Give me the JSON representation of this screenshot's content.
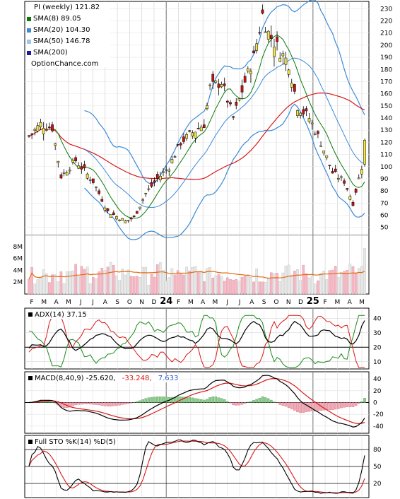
{
  "header": {
    "title": "PI (weekly) 121.82",
    "site": "OptionChance.com"
  },
  "legend": [
    {
      "label": "SMA(8) 89.05",
      "color": "#0a7a0a"
    },
    {
      "label": "SMA(20) 104.30",
      "color": "#3a8ad8"
    },
    {
      "label": "SMA(50) 146.78",
      "color": "#9cc4ef"
    },
    {
      "label": "SMA(200)",
      "color": "#1a1aa8"
    }
  ],
  "colors": {
    "up": "#f4e64a",
    "down": "#cc1111",
    "sma8": "#0a7a0a",
    "sma20": "#3a8ad8",
    "sma50": "#d81818",
    "sma200": "#1a1aa8",
    "bb": "#3a8ad8",
    "vol_up": "#e8e8e8",
    "vol_down": "#f4b8c4",
    "vol_avg": "#e26a10",
    "adx": "#000000",
    "dip": "#1a8a1a",
    "dim": "#d81818",
    "macd": "#000000",
    "signal": "#d81818",
    "hist_up": "#8ccc8c",
    "hist_down": "#f0a8b4",
    "stok": "#000000",
    "stod": "#d81818"
  },
  "x_labels": [
    "F",
    "M",
    "A",
    "M",
    "J",
    "J",
    "A",
    "S",
    "O",
    "N",
    "D",
    "24",
    "F",
    "M",
    "A",
    "M",
    "J",
    "J",
    "A",
    "S",
    "O",
    "N",
    "D",
    "25",
    "F",
    "M",
    "A",
    "M"
  ],
  "panels": {
    "volume": {
      "ticks": [
        "8M",
        "6M",
        "4M",
        "2M"
      ]
    },
    "adx": {
      "label": "ADX(14) 37.15",
      "ticks": [
        "40",
        "30",
        "20",
        "10"
      ]
    },
    "macd": {
      "label": "MACD(8,40,9) -25.620,",
      "val1": "-33.248,",
      "val2": "7.633",
      "ticks": [
        "40",
        "20",
        "0",
        "-20",
        "-40"
      ]
    },
    "sto": {
      "label": "Full STO %K(14) %D(5)",
      "ticks": [
        "80",
        "50",
        "20"
      ]
    }
  },
  "chart_data": {
    "type": "line",
    "title": "PI (weekly) 121.82",
    "price_axis_ticks": [
      230,
      220,
      210,
      200,
      190,
      180,
      170,
      160,
      150,
      140,
      130,
      120,
      110,
      100,
      90,
      80,
      70,
      60,
      50
    ],
    "weekly_close_anchors": [
      {
        "week": 0,
        "close": 125
      },
      {
        "week": 4,
        "close": 135
      },
      {
        "week": 8,
        "close": 132
      },
      {
        "week": 11,
        "close": 92
      },
      {
        "week": 16,
        "close": 105
      },
      {
        "week": 22,
        "close": 88
      },
      {
        "week": 27,
        "close": 63
      },
      {
        "week": 33,
        "close": 55
      },
      {
        "week": 36,
        "close": 58
      },
      {
        "week": 40,
        "close": 78
      },
      {
        "week": 44,
        "close": 90
      },
      {
        "week": 48,
        "close": 100
      },
      {
        "week": 52,
        "close": 120
      },
      {
        "week": 56,
        "close": 128
      },
      {
        "week": 60,
        "close": 135
      },
      {
        "week": 62,
        "close": 165
      },
      {
        "week": 66,
        "close": 170
      },
      {
        "week": 70,
        "close": 140
      },
      {
        "week": 74,
        "close": 170
      },
      {
        "week": 77,
        "close": 190
      },
      {
        "week": 80,
        "close": 225
      },
      {
        "week": 82,
        "close": 210
      },
      {
        "week": 86,
        "close": 195
      },
      {
        "week": 89,
        "close": 185
      },
      {
        "week": 92,
        "close": 150
      },
      {
        "week": 96,
        "close": 140
      },
      {
        "week": 100,
        "close": 120
      },
      {
        "week": 104,
        "close": 95
      },
      {
        "week": 108,
        "close": 88
      },
      {
        "week": 111,
        "close": 70
      },
      {
        "week": 114,
        "close": 100
      },
      {
        "week": 115,
        "close": 121.82
      }
    ],
    "series": [
      {
        "name": "SMA(8)",
        "last": 89.05
      },
      {
        "name": "SMA(20)",
        "last": 104.3
      },
      {
        "name": "SMA(50)",
        "last": 146.78
      },
      {
        "name": "SMA(200)"
      }
    ],
    "indicators": {
      "adx_14": 37.15,
      "macd_8_40_9": [
        -25.62,
        -33.248,
        7.633
      ],
      "full_sto": {
        "k": 14,
        "d": 5
      }
    }
  }
}
